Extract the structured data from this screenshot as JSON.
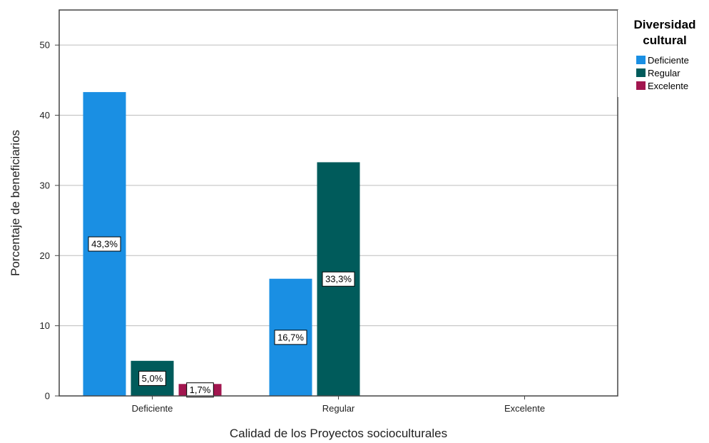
{
  "chart_data": {
    "type": "bar",
    "categories": [
      "Deficiente",
      "Regular",
      "Excelente"
    ],
    "series": [
      {
        "name": "Deficiente",
        "color": "#1a8fe3",
        "values": [
          43.3,
          16.7,
          0
        ]
      },
      {
        "name": "Regular",
        "color": "#005b5b",
        "values": [
          5.0,
          33.3,
          0
        ]
      },
      {
        "name": "Excelente",
        "color": "#a2164f",
        "values": [
          1.7,
          0,
          0
        ]
      }
    ],
    "data_labels": [
      [
        "43,3%",
        "16,7%",
        ""
      ],
      [
        "5,0%",
        "33,3%",
        ""
      ],
      [
        "1,7%",
        "",
        ""
      ]
    ],
    "yticks": [
      "0",
      "10",
      "20",
      "30",
      "40",
      "50"
    ],
    "ytick_values": [
      0,
      10,
      20,
      30,
      40,
      50
    ],
    "xlabel": "Calidad de los Proyectos socioculturales",
    "ylabel": "Porcentaje de beneficiarios",
    "ylim": [
      0,
      55
    ],
    "grid": true,
    "legend": {
      "title_line1": "Diversidad",
      "title_line2": "cultural",
      "placement": "top-right"
    }
  }
}
